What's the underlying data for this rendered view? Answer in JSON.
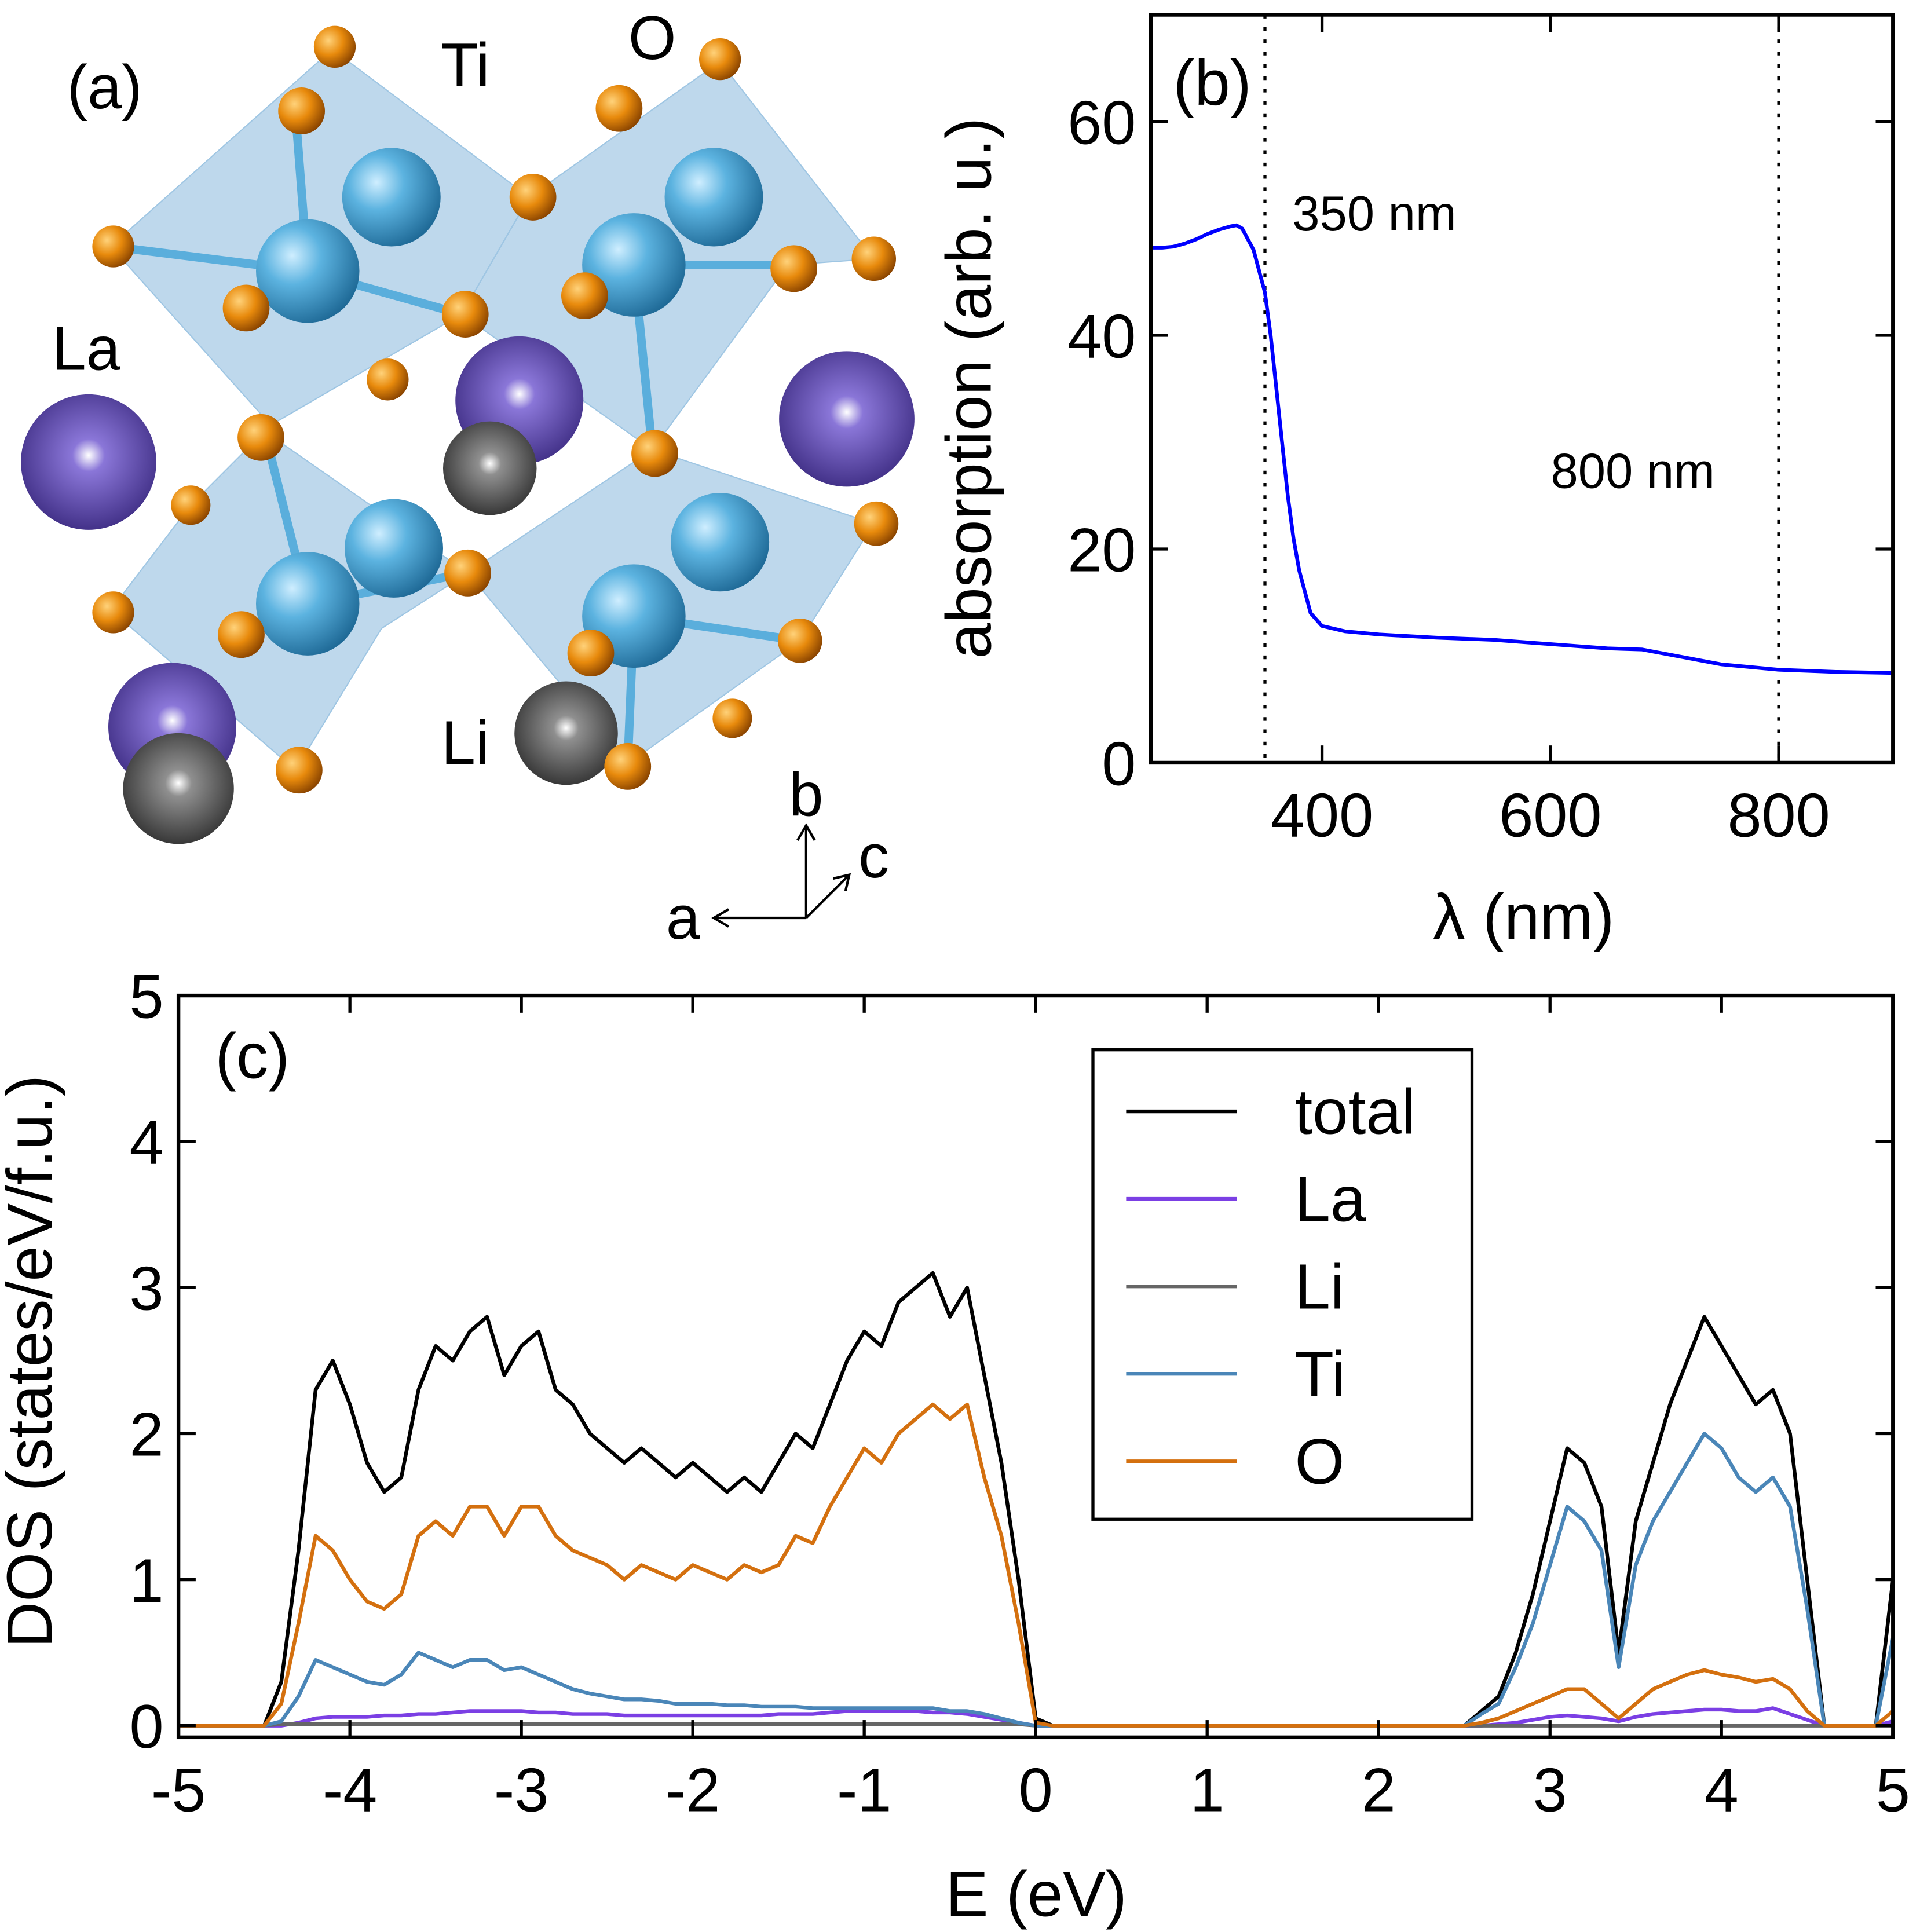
{
  "structure": {
    "panel": "(a)",
    "atoms": [
      "Ti",
      "O",
      "La",
      "Li"
    ],
    "axes": [
      "b",
      "c",
      "a"
    ]
  },
  "chart_data": [
    {
      "type": "line",
      "panel": "(b)",
      "xlabel": "λ (nm)",
      "ylabel": "absorption (arb. u.)",
      "xlim": [
        250,
        900
      ],
      "ylim": [
        0,
        70
      ],
      "xticks": [
        400,
        600,
        800
      ],
      "yticks": [
        0,
        20,
        40,
        60
      ],
      "vlines": [
        350,
        800
      ],
      "annotations": [
        "350 nm",
        "800 nm"
      ],
      "x": [
        250,
        260,
        270,
        280,
        290,
        300,
        310,
        320,
        325,
        330,
        340,
        350,
        355,
        360,
        365,
        370,
        375,
        380,
        390,
        400,
        420,
        450,
        500,
        550,
        600,
        650,
        680,
        700,
        750,
        800,
        850,
        900
      ],
      "series": [
        {
          "color": "#0000ff",
          "values": [
            48.2,
            48.2,
            48.3,
            48.6,
            49.0,
            49.5,
            49.9,
            50.2,
            50.3,
            50.0,
            48.0,
            44.0,
            40,
            35,
            30,
            25,
            21,
            18,
            14,
            12.8,
            12.3,
            12.0,
            11.7,
            11.5,
            11.1,
            10.7,
            10.6,
            10.2,
            9.2,
            8.7,
            8.5,
            8.4
          ]
        }
      ]
    },
    {
      "type": "line",
      "panel": "(c)",
      "xlabel": "E (eV)",
      "ylabel": "DOS (states/eV/f.u.)",
      "xlim": [
        -5,
        5
      ],
      "ylim": [
        -0.08,
        5
      ],
      "xticks": [
        -5,
        -4,
        -3,
        -2,
        -1,
        0,
        1,
        2,
        3,
        4,
        5
      ],
      "yticks": [
        0,
        1,
        2,
        3,
        4,
        5
      ],
      "legend": "upper right",
      "x": [
        -5,
        -4.9,
        -4.8,
        -4.7,
        -4.6,
        -4.5,
        -4.4,
        -4.3,
        -4.2,
        -4.1,
        -4,
        -3.9,
        -3.8,
        -3.7,
        -3.6,
        -3.5,
        -3.4,
        -3.3,
        -3.2,
        -3.1,
        -3,
        -2.9,
        -2.8,
        -2.7,
        -2.6,
        -2.5,
        -2.4,
        -2.3,
        -2.2,
        -2.1,
        -2,
        -1.9,
        -1.8,
        -1.7,
        -1.6,
        -1.5,
        -1.4,
        -1.3,
        -1.2,
        -1.1,
        -1,
        -0.9,
        -0.8,
        -0.7,
        -0.6,
        -0.5,
        -0.4,
        -0.3,
        -0.2,
        -0.1,
        0,
        0.1,
        0.2,
        0.3,
        0.4,
        0.5,
        0.6,
        0.7,
        0.8,
        0.9,
        1,
        1.1,
        1.2,
        1.3,
        1.4,
        1.5,
        1.6,
        1.7,
        1.8,
        1.9,
        2,
        2.1,
        2.2,
        2.3,
        2.4,
        2.5,
        2.6,
        2.7,
        2.8,
        2.9,
        3,
        3.1,
        3.2,
        3.3,
        3.4,
        3.5,
        3.6,
        3.7,
        3.8,
        3.9,
        4,
        4.1,
        4.2,
        4.3,
        4.4,
        4.5,
        4.6,
        4.7,
        4.8,
        4.9,
        5
      ],
      "series": [
        {
          "name": "total",
          "color": "#000000",
          "values": [
            0,
            0,
            0,
            0,
            0,
            0,
            0.3,
            1.2,
            2.3,
            2.5,
            2.2,
            1.8,
            1.6,
            1.7,
            2.3,
            2.6,
            2.5,
            2.7,
            2.8,
            2.4,
            2.6,
            2.7,
            2.3,
            2.2,
            2.0,
            1.9,
            1.8,
            1.9,
            1.8,
            1.7,
            1.8,
            1.7,
            1.6,
            1.7,
            1.6,
            1.8,
            2.0,
            1.9,
            2.2,
            2.5,
            2.7,
            2.6,
            2.9,
            3.0,
            3.1,
            2.8,
            3.0,
            2.4,
            1.8,
            1.0,
            0.05,
            0,
            0,
            0,
            0,
            0,
            0,
            0,
            0,
            0,
            0,
            0,
            0,
            0,
            0,
            0,
            0,
            0,
            0,
            0,
            0,
            0,
            0,
            0,
            0,
            0,
            0.1,
            0.2,
            0.5,
            0.9,
            1.4,
            1.9,
            1.8,
            1.5,
            0.5,
            1.4,
            1.8,
            2.2,
            2.5,
            2.8,
            2.6,
            2.4,
            2.2,
            2.3,
            2.0,
            1.0,
            0,
            0,
            0,
            0,
            1.0
          ]
        },
        {
          "name": "La",
          "color": "#7b3fe4",
          "values": [
            0,
            0,
            0,
            0,
            0,
            0,
            0,
            0.02,
            0.05,
            0.06,
            0.06,
            0.06,
            0.07,
            0.07,
            0.08,
            0.08,
            0.09,
            0.1,
            0.1,
            0.1,
            0.1,
            0.09,
            0.09,
            0.08,
            0.08,
            0.08,
            0.07,
            0.07,
            0.07,
            0.07,
            0.07,
            0.07,
            0.07,
            0.07,
            0.07,
            0.08,
            0.08,
            0.08,
            0.09,
            0.1,
            0.1,
            0.1,
            0.1,
            0.1,
            0.09,
            0.09,
            0.08,
            0.06,
            0.04,
            0.02,
            0,
            0,
            0,
            0,
            0,
            0,
            0,
            0,
            0,
            0,
            0,
            0,
            0,
            0,
            0,
            0,
            0,
            0,
            0,
            0,
            0,
            0,
            0,
            0,
            0,
            0,
            0,
            0.01,
            0.02,
            0.04,
            0.06,
            0.07,
            0.06,
            0.05,
            0.03,
            0.06,
            0.08,
            0.09,
            0.1,
            0.11,
            0.11,
            0.1,
            0.1,
            0.12,
            0.08,
            0.04,
            0,
            0,
            0,
            0,
            0.03
          ]
        },
        {
          "name": "Li",
          "color": "#666666",
          "values": [
            0,
            0,
            0,
            0,
            0,
            0,
            0.01,
            0.01,
            0.01,
            0.01,
            0.01,
            0.01,
            0.01,
            0.01,
            0.01,
            0.01,
            0.01,
            0.01,
            0.01,
            0.01,
            0.01,
            0.01,
            0.01,
            0.01,
            0.01,
            0.01,
            0.01,
            0.01,
            0.01,
            0.01,
            0.01,
            0.01,
            0.01,
            0.01,
            0.01,
            0.01,
            0.01,
            0.01,
            0.01,
            0.01,
            0.01,
            0.01,
            0.01,
            0.01,
            0.01,
            0.01,
            0.01,
            0.01,
            0.01,
            0.01,
            0,
            0,
            0,
            0,
            0,
            0,
            0,
            0,
            0,
            0,
            0,
            0,
            0,
            0,
            0,
            0,
            0,
            0,
            0,
            0,
            0,
            0,
            0,
            0,
            0,
            0,
            0,
            0,
            0,
            0,
            0,
            0,
            0,
            0,
            0,
            0,
            0,
            0,
            0,
            0,
            0,
            0,
            0,
            0,
            0,
            0,
            0,
            0,
            0,
            0,
            0
          ]
        },
        {
          "name": "Ti",
          "color": "#4a86b8",
          "values": [
            0,
            0,
            0,
            0,
            0,
            0,
            0.03,
            0.2,
            0.45,
            0.4,
            0.35,
            0.3,
            0.28,
            0.35,
            0.5,
            0.45,
            0.4,
            0.45,
            0.45,
            0.38,
            0.4,
            0.35,
            0.3,
            0.25,
            0.22,
            0.2,
            0.18,
            0.18,
            0.17,
            0.15,
            0.15,
            0.15,
            0.14,
            0.14,
            0.13,
            0.13,
            0.13,
            0.12,
            0.12,
            0.12,
            0.12,
            0.12,
            0.12,
            0.12,
            0.12,
            0.1,
            0.1,
            0.08,
            0.05,
            0.02,
            0,
            0,
            0,
            0,
            0,
            0,
            0,
            0,
            0,
            0,
            0,
            0,
            0,
            0,
            0,
            0,
            0,
            0,
            0,
            0,
            0,
            0,
            0,
            0,
            0,
            0,
            0.08,
            0.15,
            0.4,
            0.7,
            1.1,
            1.5,
            1.4,
            1.2,
            0.4,
            1.1,
            1.4,
            1.6,
            1.8,
            2.0,
            1.9,
            1.7,
            1.6,
            1.7,
            1.5,
            0.8,
            0,
            0,
            0,
            0,
            0.6
          ]
        },
        {
          "name": "O",
          "color": "#d4700f",
          "values": [
            0,
            0,
            0,
            0,
            0,
            0,
            0.15,
            0.7,
            1.3,
            1.2,
            1.0,
            0.85,
            0.8,
            0.9,
            1.3,
            1.4,
            1.3,
            1.5,
            1.5,
            1.3,
            1.5,
            1.5,
            1.3,
            1.2,
            1.15,
            1.1,
            1.0,
            1.1,
            1.05,
            1.0,
            1.1,
            1.05,
            1.0,
            1.1,
            1.05,
            1.1,
            1.3,
            1.25,
            1.5,
            1.7,
            1.9,
            1.8,
            2.0,
            2.1,
            2.2,
            2.1,
            2.2,
            1.7,
            1.3,
            0.7,
            0.02,
            0,
            0,
            0,
            0,
            0,
            0,
            0,
            0,
            0,
            0,
            0,
            0,
            0,
            0,
            0,
            0,
            0,
            0,
            0,
            0,
            0,
            0,
            0,
            0,
            0,
            0.02,
            0.05,
            0.1,
            0.15,
            0.2,
            0.25,
            0.25,
            0.15,
            0.05,
            0.15,
            0.25,
            0.3,
            0.35,
            0.38,
            0.35,
            0.33,
            0.3,
            0.32,
            0.25,
            0.1,
            0,
            0,
            0,
            0,
            0.1
          ]
        }
      ]
    }
  ]
}
